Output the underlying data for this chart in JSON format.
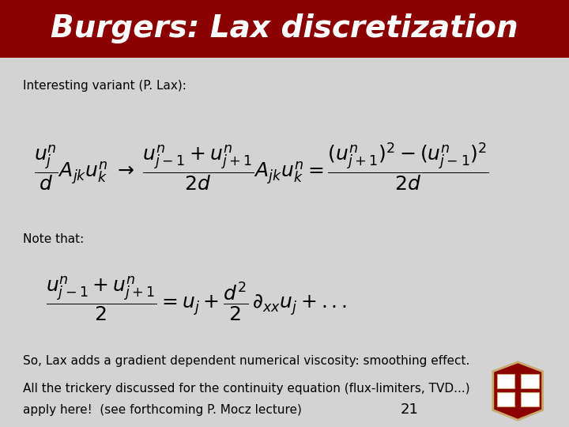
{
  "title": "Burgers: Lax discretization",
  "title_bg_color": "#8B0000",
  "title_text_color": "#FFFFFF",
  "slide_bg_color": "#D3D3D3",
  "title_fontsize": 28,
  "body_fontsize": 11,
  "math_fontsize": 18,
  "label1": "Interesting variant (P. Lax):",
  "label2": "Note that:",
  "label3": "So, Lax adds a gradient dependent numerical viscosity: smoothing effect.",
  "label4_line1": "All the trickery discussed for the continuity equation (flux-limiters, TVD...)",
  "label4_line2": "apply here!  (see forthcoming P. Mocz lecture)",
  "page_number": "21",
  "shield_color": "#8B0000",
  "shield_border_color": "#C8A96E"
}
